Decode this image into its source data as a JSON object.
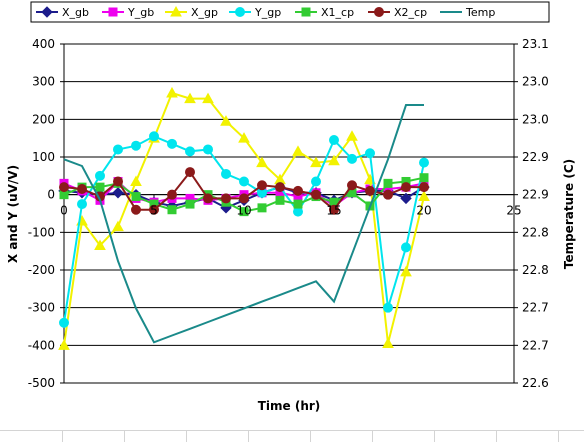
{
  "chart_data": {
    "type": "line",
    "title": "",
    "xlabel": "Time (hr)",
    "ylabel": "X and Y (uV/V)",
    "y2label": "Temperature (C)",
    "xlim": [
      0,
      25
    ],
    "ylim": [
      -500,
      400
    ],
    "y2lim": [
      22.6,
      23.1
    ],
    "x_ticks": [
      0,
      5,
      10,
      15,
      20,
      25
    ],
    "y_ticks": [
      -500,
      -400,
      -300,
      -200,
      -100,
      0,
      100,
      200,
      300,
      400
    ],
    "y2_tick_labels": [
      "23.1",
      "23.0",
      "23.0",
      "22.9",
      "22.9",
      "22.8",
      "22.8",
      "22.7",
      "22.7",
      "22.6"
    ],
    "grid": true,
    "legend_position": "top",
    "series": [
      {
        "name": "X_gb",
        "axis": "left",
        "color": "#1c1c8c",
        "marker": "diamond",
        "x": [
          0,
          1,
          2,
          3,
          4,
          5,
          6,
          7,
          8,
          9,
          10,
          11,
          12,
          13,
          14,
          15,
          16,
          17,
          18,
          19,
          20
        ],
        "y": [
          10,
          5,
          0,
          5,
          0,
          -20,
          -30,
          -20,
          -10,
          -35,
          -15,
          5,
          20,
          5,
          5,
          -15,
          5,
          10,
          10,
          -10,
          20
        ]
      },
      {
        "name": "Y_gb",
        "axis": "left",
        "color": "#ee00ee",
        "marker": "square",
        "x": [
          0,
          1,
          2,
          3,
          4,
          5,
          6,
          7,
          8,
          9,
          10,
          11,
          12,
          13,
          14,
          15,
          16,
          17,
          18,
          19,
          20
        ],
        "y": [
          30,
          10,
          -15,
          35,
          -10,
          -20,
          -10,
          -10,
          -15,
          -10,
          0,
          5,
          5,
          -5,
          5,
          -30,
          5,
          15,
          15,
          20,
          30
        ]
      },
      {
        "name": "X_gp",
        "axis": "left",
        "color": "#f2f200",
        "marker": "triangle",
        "x": [
          0,
          1,
          2,
          3,
          4,
          5,
          6,
          7,
          8,
          9,
          10,
          11,
          12,
          13,
          14,
          15,
          16,
          17,
          18,
          19,
          20
        ],
        "y": [
          -400,
          -70,
          -135,
          -85,
          35,
          150,
          270,
          255,
          255,
          195,
          150,
          85,
          40,
          115,
          85,
          90,
          155,
          40,
          -395,
          -205,
          -5
        ]
      },
      {
        "name": "Y_gp",
        "axis": "left",
        "color": "#00e5ee",
        "marker": "circle",
        "x": [
          0,
          1,
          2,
          3,
          4,
          5,
          6,
          7,
          8,
          9,
          10,
          11,
          12,
          13,
          14,
          15,
          16,
          17,
          18,
          19,
          20
        ],
        "y": [
          -340,
          -25,
          50,
          120,
          130,
          155,
          135,
          115,
          120,
          55,
          35,
          5,
          20,
          -45,
          35,
          145,
          95,
          110,
          -300,
          -140,
          85
        ]
      },
      {
        "name": "X1_cp",
        "axis": "left",
        "color": "#33cc33",
        "marker": "square",
        "x": [
          0,
          1,
          2,
          3,
          4,
          5,
          6,
          7,
          8,
          9,
          10,
          11,
          12,
          13,
          14,
          15,
          16,
          17,
          18,
          19,
          20
        ],
        "y": [
          0,
          20,
          20,
          30,
          -5,
          -25,
          -40,
          -25,
          0,
          -20,
          -45,
          -35,
          -15,
          -25,
          -5,
          -20,
          5,
          -30,
          30,
          35,
          45
        ]
      },
      {
        "name": "X2_cp",
        "axis": "left",
        "color": "#8b1a1a",
        "marker": "circle",
        "x": [
          0,
          1,
          2,
          3,
          4,
          5,
          6,
          7,
          8,
          9,
          10,
          11,
          12,
          13,
          14,
          15,
          16,
          17,
          18,
          19,
          20
        ],
        "y": [
          20,
          15,
          -5,
          35,
          -40,
          -40,
          0,
          60,
          -10,
          -10,
          -10,
          25,
          20,
          10,
          0,
          -40,
          25,
          10,
          0,
          20,
          20
        ]
      },
      {
        "name": "Temp",
        "axis": "right",
        "color": "#1a8a8a",
        "marker": "none",
        "x": [
          0,
          1,
          2,
          3,
          4,
          5,
          6,
          7,
          8,
          9,
          10,
          11,
          12,
          13,
          14,
          15,
          16,
          17,
          18,
          19,
          20
        ],
        "y": [
          22.93,
          22.92,
          22.87,
          22.78,
          22.71,
          22.66,
          22.67,
          22.68,
          22.69,
          22.7,
          22.71,
          22.72,
          22.73,
          22.74,
          22.75,
          22.72,
          22.79,
          22.86,
          22.93,
          23.01,
          23.01
        ]
      }
    ]
  }
}
